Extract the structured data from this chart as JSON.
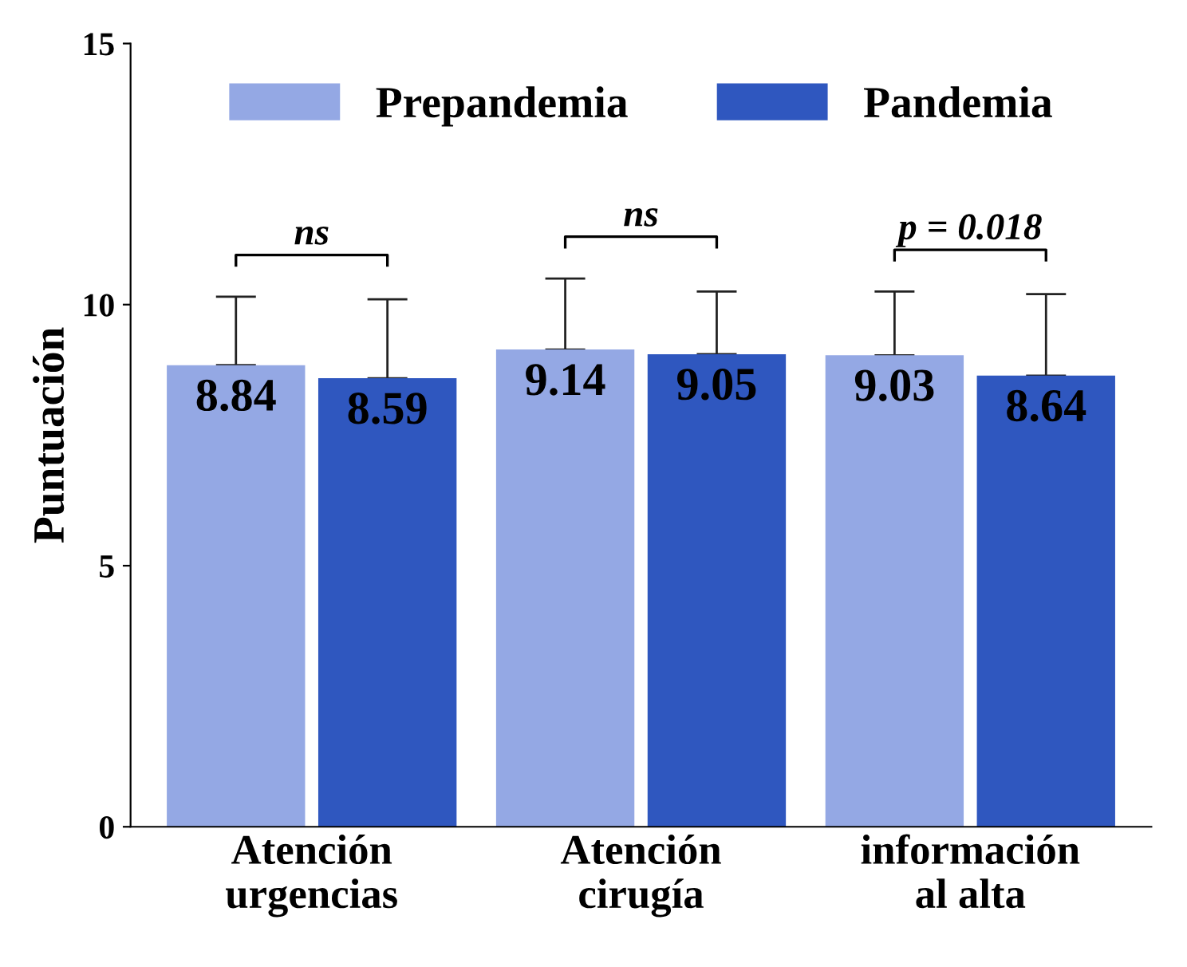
{
  "chart_data": {
    "type": "bar",
    "ylabel": "Puntuación",
    "categories": [
      "Atención\nurgencias",
      "Atención\ncirugía",
      "información\nal alta"
    ],
    "series": [
      {
        "name": "Prepandemia",
        "color": "#94a8e4",
        "values": [
          8.84,
          9.14,
          9.03
        ],
        "errors": [
          [
            8.84,
            10.15
          ],
          [
            9.14,
            10.5
          ],
          [
            9.03,
            10.25
          ]
        ]
      },
      {
        "name": "Pandemia",
        "color": "#2f57bf",
        "values": [
          8.59,
          9.05,
          8.64
        ],
        "errors": [
          [
            8.59,
            10.1
          ],
          [
            9.05,
            10.25
          ],
          [
            8.64,
            10.2
          ]
        ]
      }
    ],
    "annotations": [
      "ns",
      "ns",
      "p = 0.018"
    ],
    "ylim": [
      0,
      15
    ],
    "yticks": [
      0,
      5,
      10,
      15
    ],
    "data_labels": true,
    "legend": "top",
    "grid": false
  }
}
